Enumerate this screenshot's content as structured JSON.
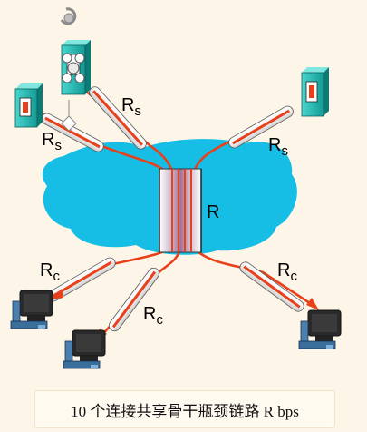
{
  "caption": "10 个连接共享骨干瓶颈链路 R bps",
  "labels": {
    "server_link": "R",
    "server_link_sub": "s",
    "client_link": "R",
    "client_link_sub": "c",
    "backbone": "R"
  },
  "colors": {
    "cloud": "#16bde4",
    "flow": "#e8401a",
    "server": "#20b8b0",
    "client": "#2a2a2a",
    "pipe": "#ffffff"
  }
}
